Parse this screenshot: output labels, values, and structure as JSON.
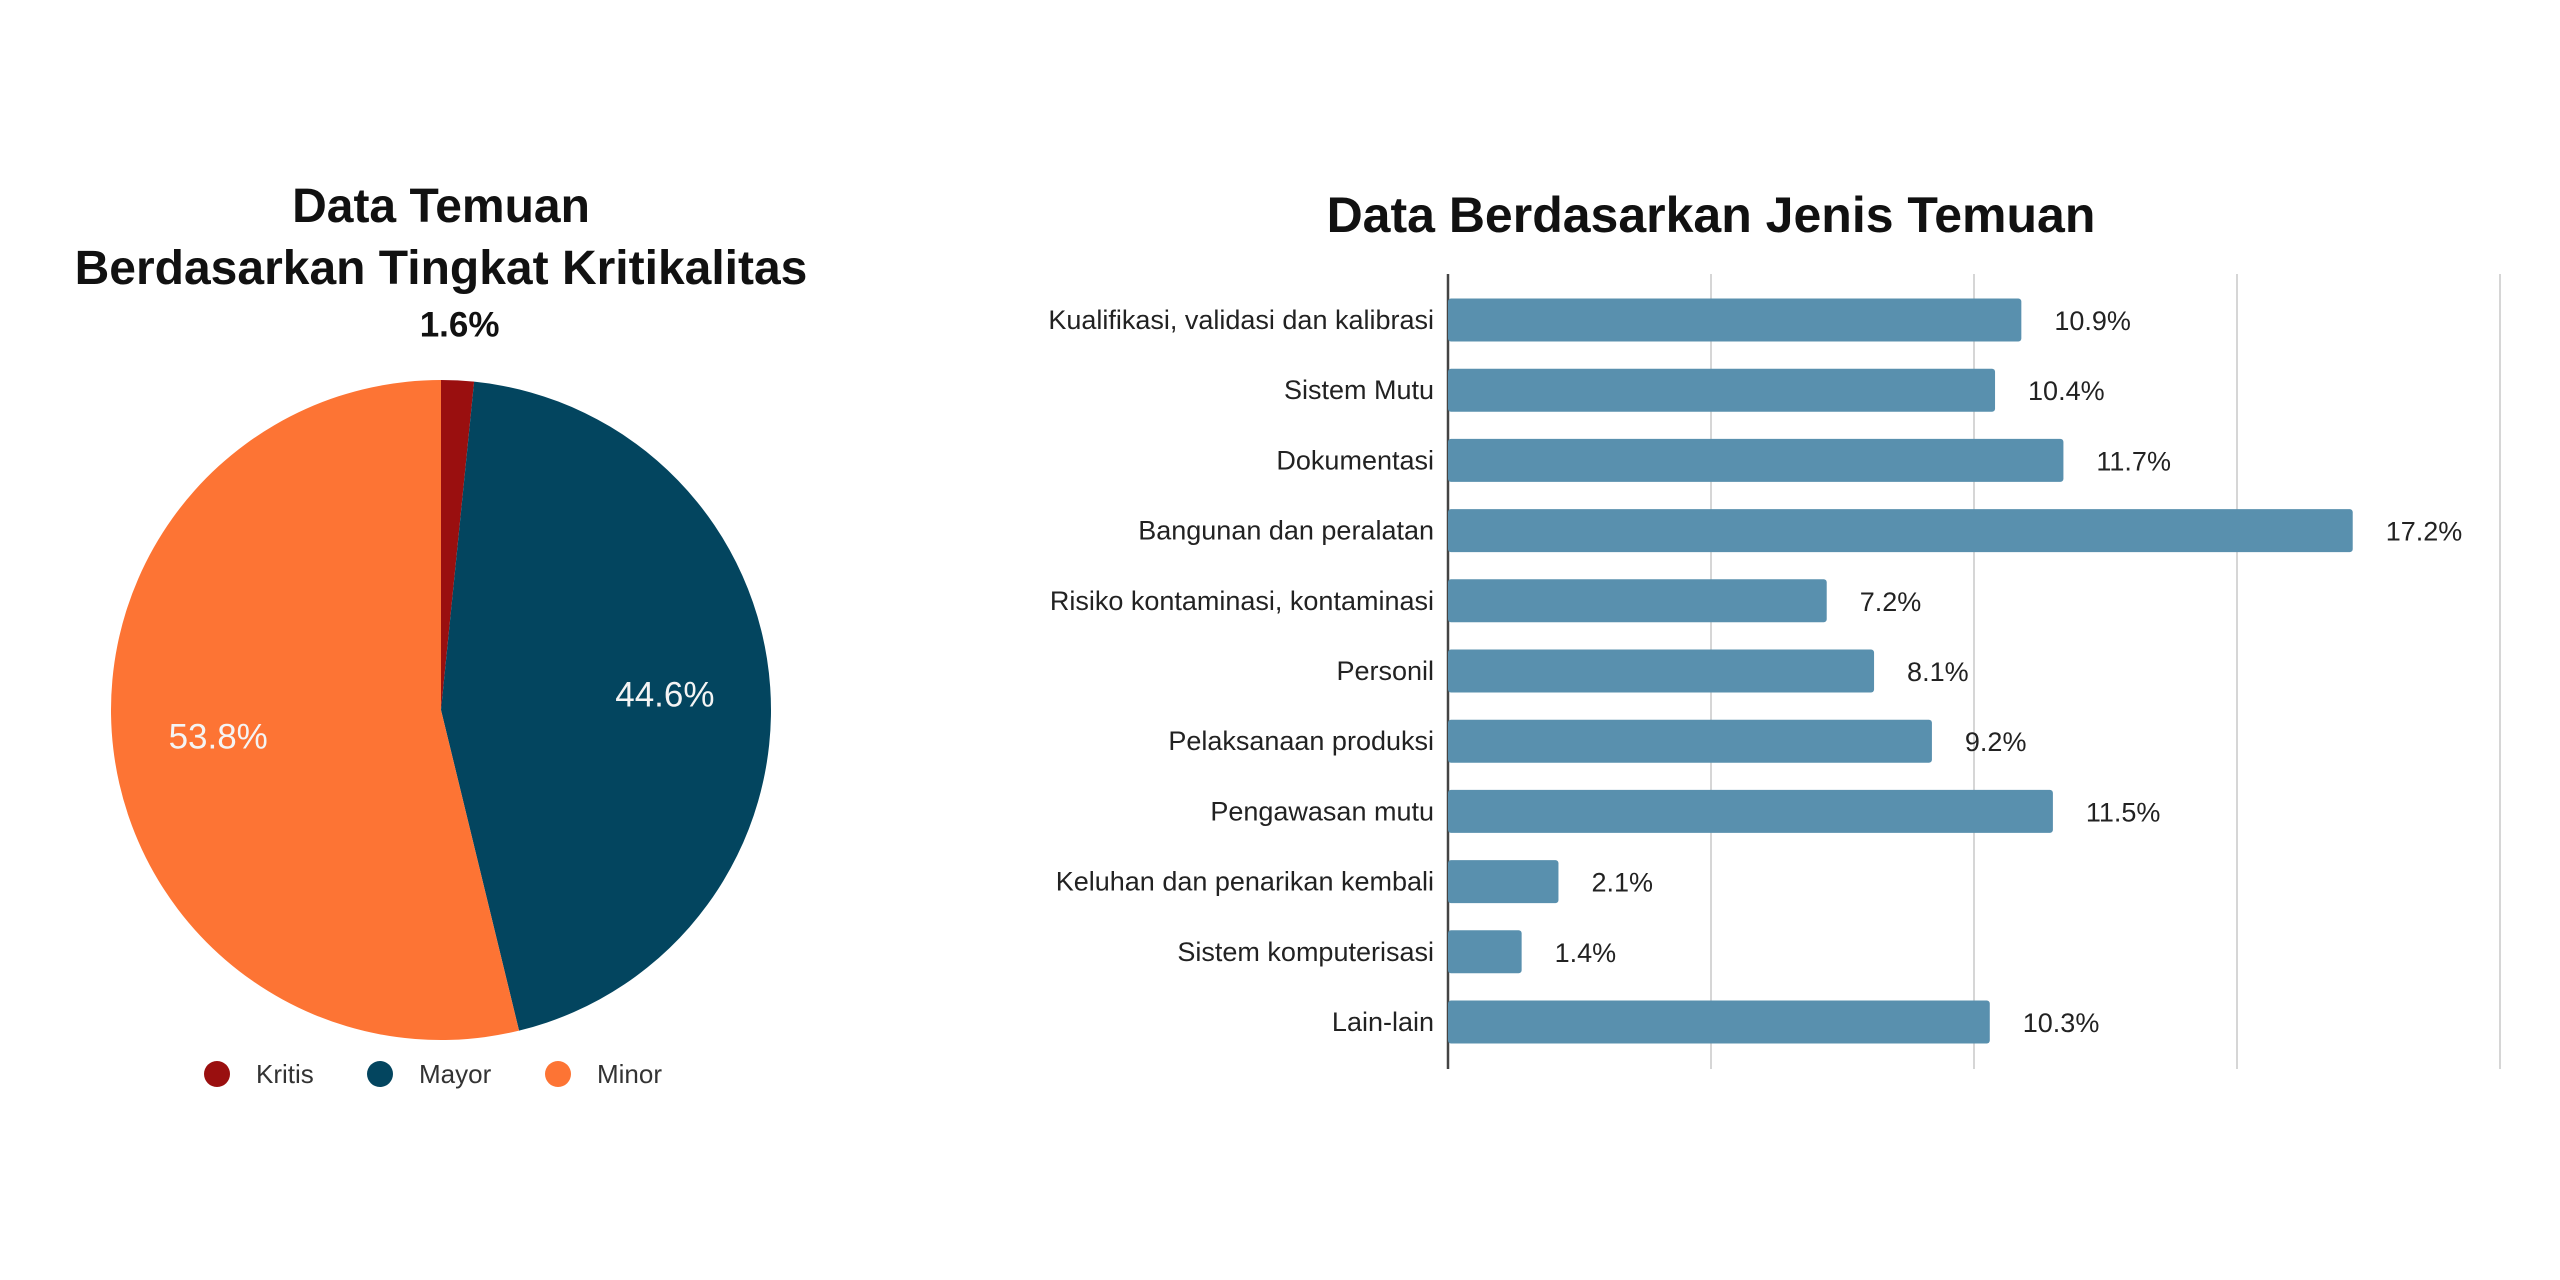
{
  "chart_data": [
    {
      "type": "pie",
      "title": [
        "Data Temuan",
        "Berdasarkan Tingkat Kritikalitas"
      ],
      "categories": [
        "Kritis",
        "Mayor",
        "Minor"
      ],
      "values": [
        1.6,
        44.6,
        53.8
      ],
      "labels": [
        "1.6%",
        "44.6%",
        "53.8%"
      ],
      "colors": [
        "#9a0f0f",
        "#03455f",
        "#fd7434"
      ],
      "legend": "bottom"
    },
    {
      "type": "bar",
      "orientation": "horizontal",
      "title": "Data Berdasarkan Jenis Temuan",
      "categories": [
        "Kualifikasi, validasi dan kalibrasi",
        "Sistem Mutu",
        "Dokumentasi",
        "Bangunan dan peralatan",
        "Risiko kontaminasi, kontaminasi",
        "Personil",
        "Pelaksanaan produksi",
        "Pengawasan mutu",
        "Keluhan dan penarikan kembali",
        "Sistem komputerisasi",
        "Lain-lain"
      ],
      "values": [
        10.9,
        10.4,
        11.7,
        17.2,
        7.2,
        8.1,
        9.2,
        11.5,
        2.1,
        1.4,
        10.3
      ],
      "labels": [
        "10.9%",
        "10.4%",
        "11.7%",
        "17.2%",
        "7.2%",
        "8.1%",
        "9.2%",
        "11.5%",
        "2.1%",
        "1.4%",
        "10.3%"
      ],
      "xlim": [
        0,
        20
      ],
      "grid_step": 5,
      "grid": true,
      "color": "#5990ae"
    }
  ]
}
